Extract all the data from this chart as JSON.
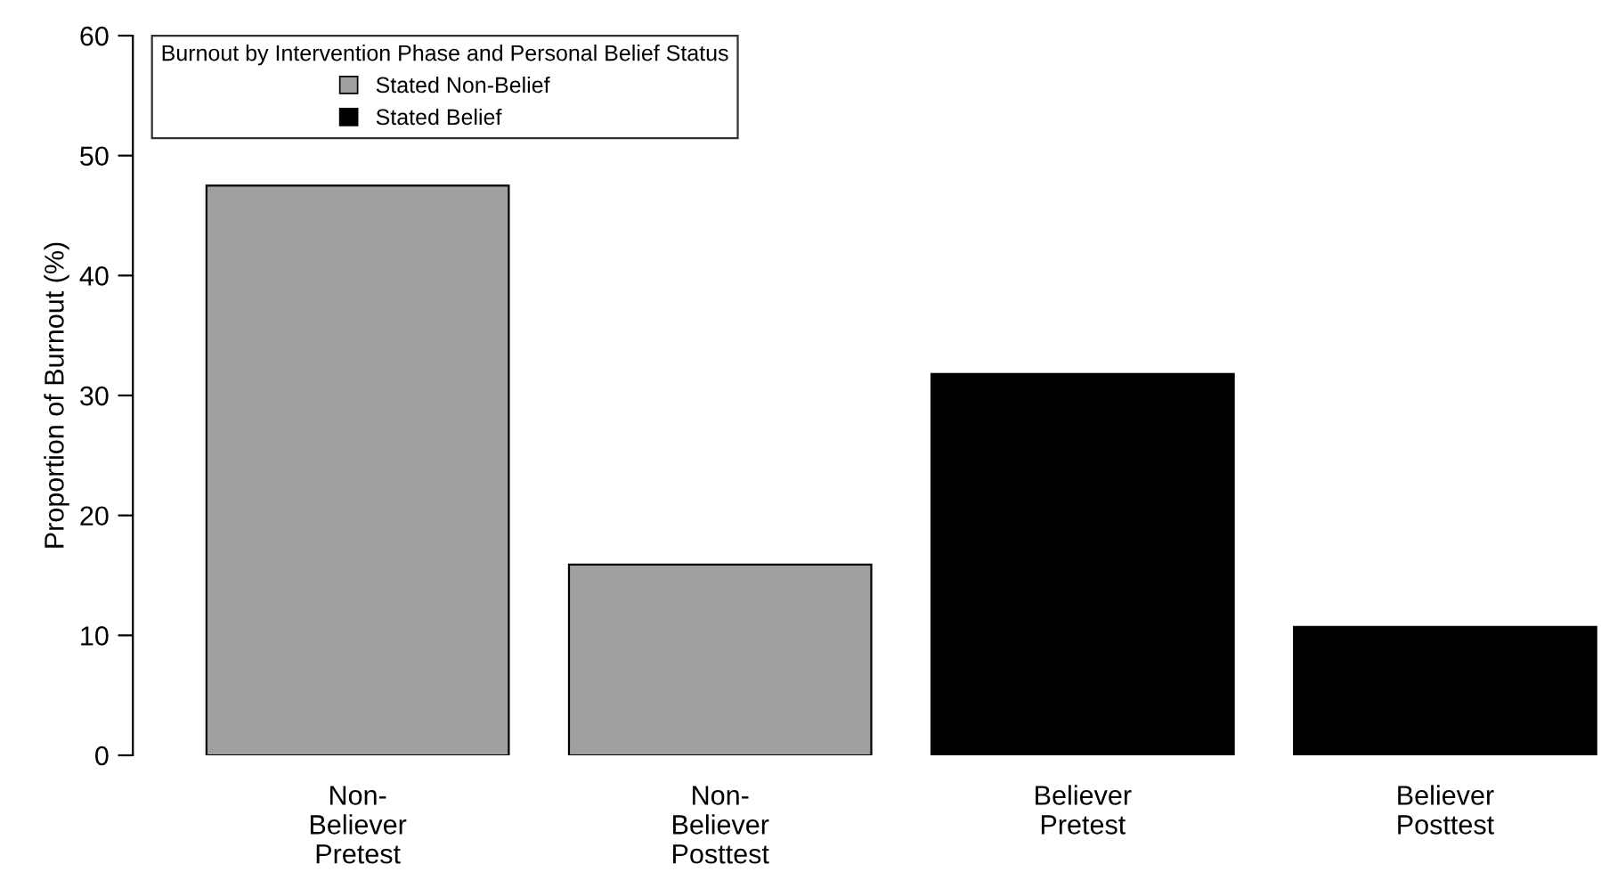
{
  "chart_data": {
    "type": "bar",
    "ylabel": "Proportion of Burnout (%)",
    "legend_title": "Burnout by Intervention Phase and Personal Belief Status",
    "categories": [
      "Non-\nBeliever\nPretest",
      "Non-\nBeliever\nPosttest",
      "Believer\nPretest",
      "Believer\nPosttest"
    ],
    "series": [
      {
        "name": "Stated Non-Belief",
        "color": "#a0a0a0",
        "values": [
          47.5,
          15.9,
          null,
          null
        ]
      },
      {
        "name": "Stated Belief",
        "color": "#000000",
        "values": [
          null,
          null,
          31.8,
          10.7
        ]
      }
    ],
    "ylim": [
      0,
      60
    ],
    "yticks": [
      0,
      10,
      20,
      30,
      40,
      50,
      60
    ],
    "grid": false,
    "legend": "top left"
  }
}
